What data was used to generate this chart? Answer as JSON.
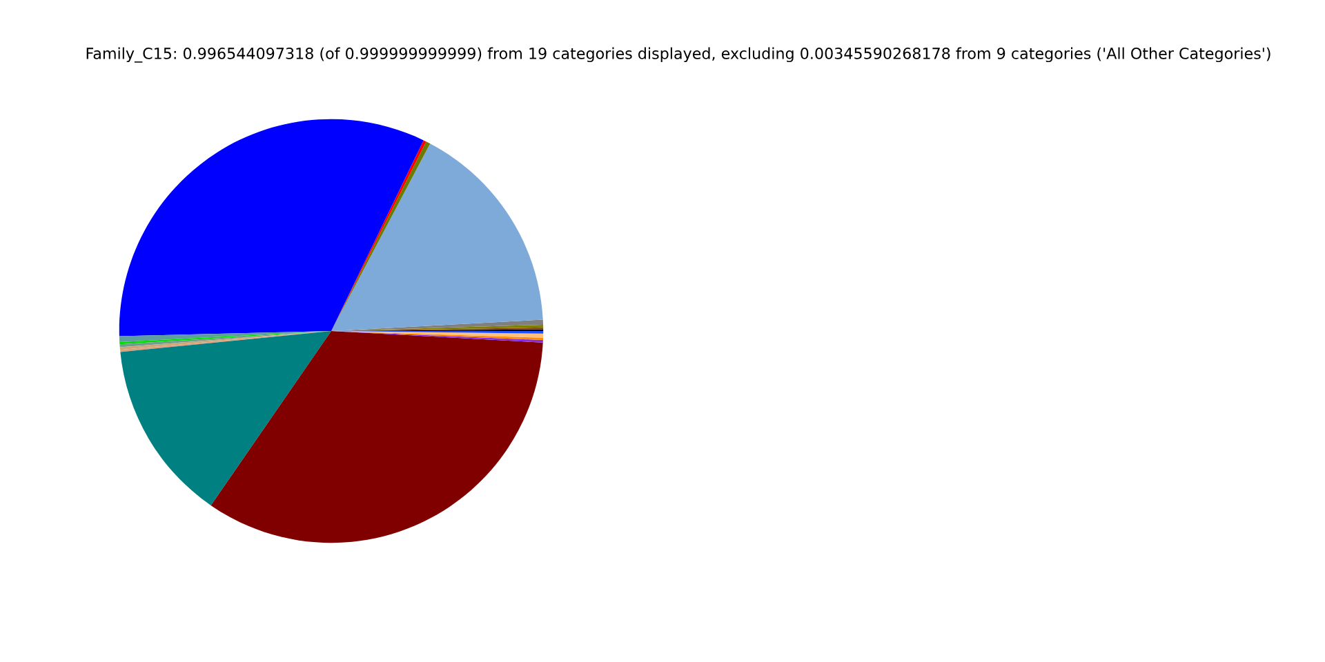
{
  "chart_data": {
    "type": "pie",
    "title": "Family_C15: 0.996544097318 (of 0.999999999999) from 19 categories displayed, excluding 0.00345590268178 from 9 categories ('All Other Categories')",
    "categories": [
      null,
      null,
      null,
      null,
      null,
      null,
      null,
      null,
      null,
      null,
      null,
      null,
      null,
      null,
      null,
      null,
      null,
      null,
      null
    ],
    "values": [
      0.12,
      0.15,
      0.2,
      0.39,
      16.42,
      0.33,
      0.22,
      32.56,
      0.44,
      0.17,
      0.22,
      0.2,
      0.16,
      13.81,
      33.74,
      0.19,
      0.17,
      0.31,
      0.2
    ],
    "colors": [
      "#000000",
      "#8b4513",
      "#808000",
      "#808080",
      "#7eaad9",
      "#6b7a00",
      "#ff0000",
      "#0000ff",
      "#5f9ea0",
      "#00dd00",
      "#6e9e8e",
      "#c8a878",
      "#e0a080",
      "#008080",
      "#800000",
      "#8a2be2",
      "#ff8c00",
      "#ffc080",
      "#1e50ff"
    ],
    "legend": false
  }
}
